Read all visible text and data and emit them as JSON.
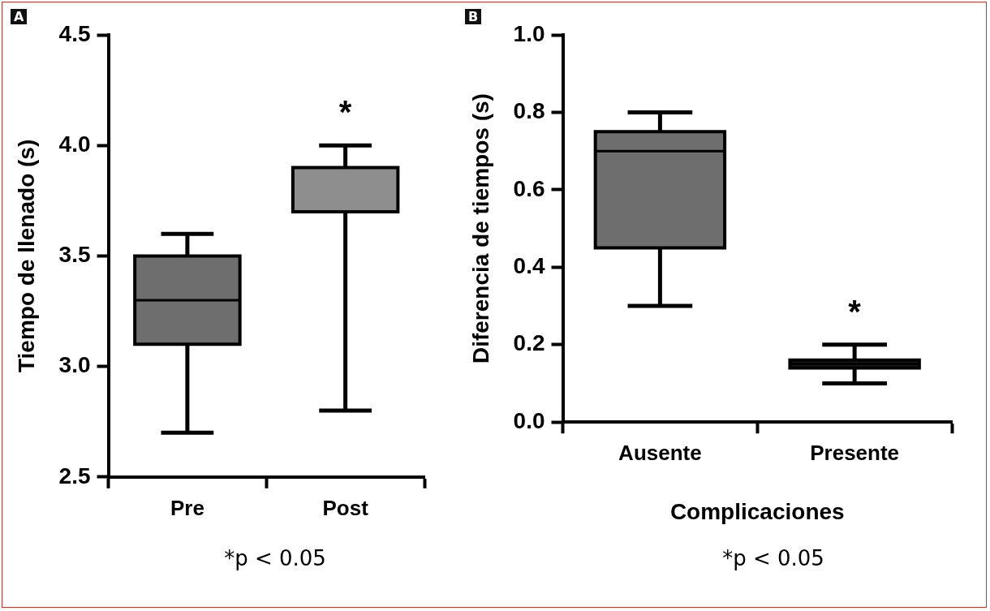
{
  "chart_data": [
    {
      "type": "box",
      "title": "A",
      "ylabel": "Tiempo de llenado (s)",
      "categories": [
        "Pre",
        "Post"
      ],
      "colors": [
        "#6e6e6e",
        "#8e8e8e"
      ],
      "boxes": [
        {
          "low": 2.7,
          "q1": 3.1,
          "median": 3.3,
          "q3": 3.5,
          "high": 3.6
        },
        {
          "low": 2.8,
          "q1": 3.7,
          "median": 3.9,
          "q3": 3.9,
          "high": 4.0
        }
      ],
      "ylim": [
        2.5,
        4.5
      ],
      "yticks": [
        {
          "value": 2.5,
          "label": "2.5"
        },
        {
          "value": 3,
          "label": "3.0"
        },
        {
          "value": 3.5,
          "label": "3.5"
        },
        {
          "value": 4,
          "label": "4.0"
        },
        {
          "value": 4.5,
          "label": "4.5"
        }
      ],
      "annotations": [
        "*",
        "*p < 0.05"
      ]
    },
    {
      "type": "box",
      "title": "B",
      "ylabel": "Diferencia de tiempos (s)",
      "xlabel": "Complicaciones",
      "categories": [
        "Ausente",
        "Presente"
      ],
      "colors": [
        "#6e6e6e",
        "#1a1a1a"
      ],
      "boxes": [
        {
          "low": 0.3,
          "q1": 0.45,
          "median": 0.7,
          "q3": 0.75,
          "high": 0.8
        },
        {
          "low": 0.1,
          "q1": 0.14,
          "median": 0.15,
          "q3": 0.16,
          "high": 0.2
        }
      ],
      "ylim": [
        0,
        1
      ],
      "yticks": [
        {
          "value": 0,
          "label": "0.0"
        },
        {
          "value": 0.2,
          "label": "0.2"
        },
        {
          "value": 0.4,
          "label": "0.4"
        },
        {
          "value": 0.6,
          "label": "0.6"
        },
        {
          "value": 0.8,
          "label": "0.8"
        },
        {
          "value": 1,
          "label": "1.0"
        }
      ],
      "annotations": [
        "*",
        "*p < 0.05"
      ]
    }
  ]
}
